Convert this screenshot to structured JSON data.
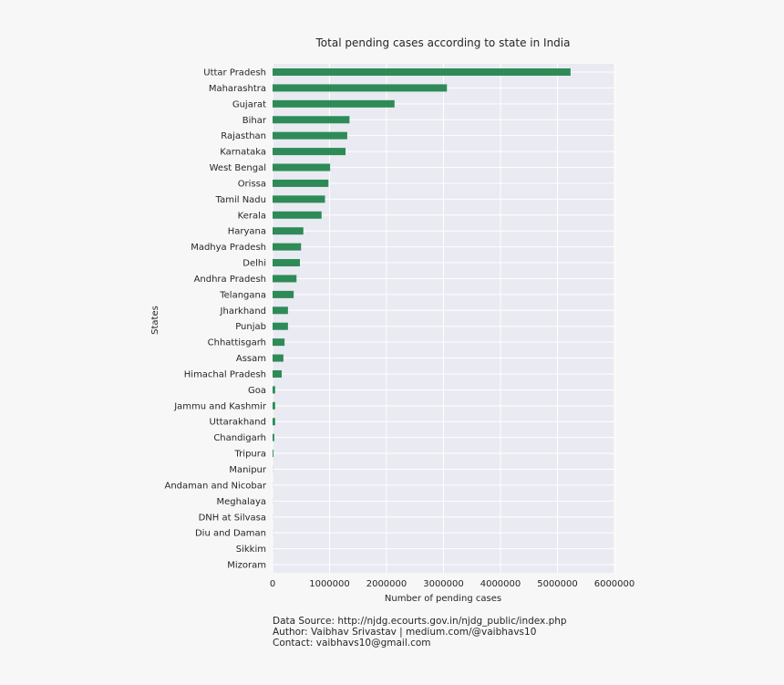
{
  "chart_data": {
    "type": "bar",
    "orientation": "horizontal",
    "title": "Total pending cases according to state in India",
    "xlabel": "Number of pending cases",
    "ylabel": "States",
    "xlim": [
      0,
      6000000
    ],
    "xticks": [
      0,
      1000000,
      2000000,
      3000000,
      4000000,
      5000000,
      6000000
    ],
    "xtick_labels": [
      "0",
      "1000000",
      "2000000",
      "3000000",
      "4000000",
      "5000000",
      "6000000"
    ],
    "grid": true,
    "bar_color": "#2e8b57",
    "background_color": "#eaeaf2",
    "categories": [
      "Uttar Pradesh",
      "Maharashtra",
      "Gujarat",
      "Bihar",
      "Rajasthan",
      "Karnataka",
      "West Bengal",
      "Orissa",
      "Tamil Nadu",
      "Kerala",
      "Haryana",
      "Madhya Pradesh",
      "Delhi",
      "Andhra Pradesh",
      "Telangana",
      "Jharkhand",
      "Punjab",
      "Chhattisgarh",
      "Assam",
      "Himachal Pradesh",
      "Goa",
      "Jammu and Kashmir",
      "Uttarakhand",
      "Chandigarh",
      "Tripura",
      "Manipur",
      "Andaman and Nicobar",
      "Meghalaya",
      "DNH at Silvasa",
      "Diu and Daman",
      "Sikkim",
      "Mizoram"
    ],
    "values": [
      5230000,
      3060000,
      2140000,
      1350000,
      1310000,
      1280000,
      1010000,
      980000,
      920000,
      860000,
      540000,
      500000,
      480000,
      420000,
      370000,
      270000,
      270000,
      210000,
      190000,
      160000,
      45000,
      45000,
      45000,
      30000,
      15000,
      2000,
      1500,
      1500,
      1000,
      1000,
      800,
      500
    ]
  },
  "footer": {
    "line1": "Data Source: http://njdg.ecourts.gov.in/njdg_public/index.php",
    "line2": "Author: Vaibhav Srivastav | medium.com/@vaibhavs10",
    "line3": "Contact: vaibhavs10@gmail.com"
  }
}
